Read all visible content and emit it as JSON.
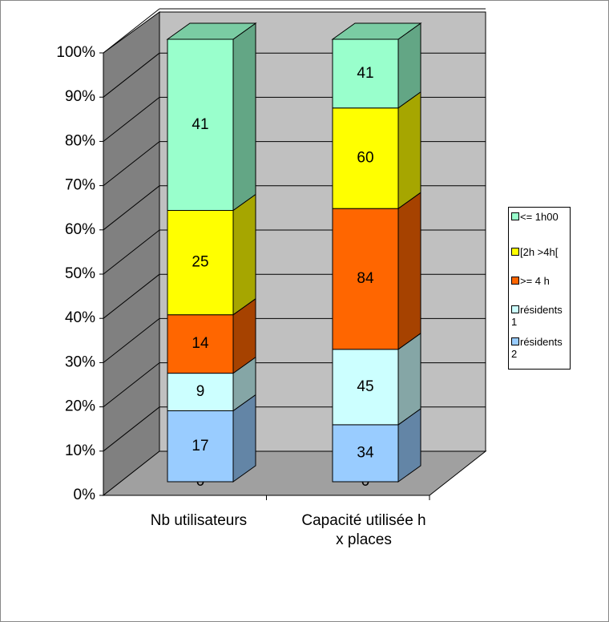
{
  "chart_data": {
    "type": "bar3d_stacked_percent",
    "categories": [
      "Nb utilisateurs",
      "Capacité utilisée h x places"
    ],
    "series": [
      {
        "color": "#99ccff",
        "values": [
          0,
          0
        ]
      },
      {
        "name": "résidents 2",
        "color": "#99ccff",
        "values": [
          17,
          34
        ]
      },
      {
        "name": "résidents 1",
        "color": "#ccffff",
        "values": [
          9,
          45
        ]
      },
      {
        "name": ">= 4 h",
        "color": "#ff6600",
        "values": [
          14,
          84
        ]
      },
      {
        "name": "[2h >4h[",
        "color": "#ffff00",
        "values": [
          25,
          60
        ]
      },
      {
        "name": "<= 1h00",
        "color": "#99ffcc",
        "values": [
          41,
          41
        ]
      }
    ],
    "ylim": [
      0,
      100
    ],
    "yticks": [
      {
        "value": 0,
        "label": "0%"
      },
      {
        "value": 10,
        "label": "10%"
      },
      {
        "value": 20,
        "label": "20%"
      },
      {
        "value": 30,
        "label": "30%"
      },
      {
        "value": 40,
        "label": "40%"
      },
      {
        "value": 50,
        "label": "50%"
      },
      {
        "value": 60,
        "label": "60%"
      },
      {
        "value": 70,
        "label": "70%"
      },
      {
        "value": 80,
        "label": "80%"
      },
      {
        "value": 90,
        "label": "90%"
      },
      {
        "value": 100,
        "label": "100%"
      }
    ],
    "grid": true
  }
}
